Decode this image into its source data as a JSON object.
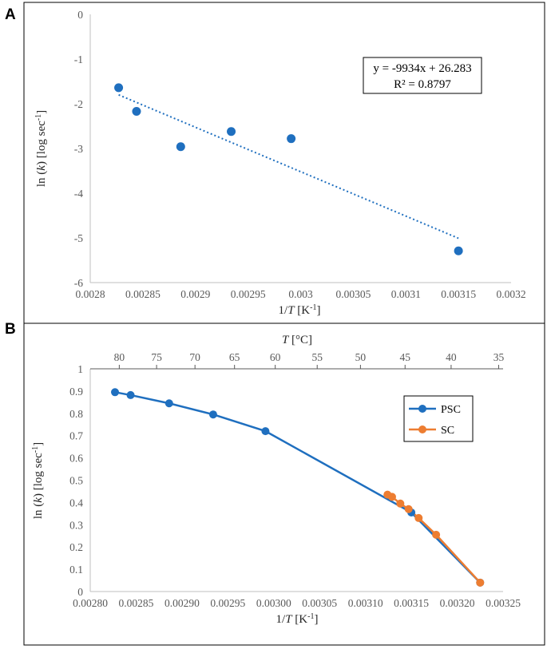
{
  "chart_data": [
    {
      "panel": "A",
      "type": "scatter",
      "xlabel": "1/T [K-1]",
      "ylabel": "ln (k) [log sec-1]",
      "xlim": [
        0.0028,
        0.0032
      ],
      "ylim": [
        -6,
        0
      ],
      "xticks": [
        "0.0028",
        "0.00285",
        "0.0029",
        "0.00295",
        "0.003",
        "0.00305",
        "0.0031",
        "0.00315",
        "0.0032"
      ],
      "yticks": [
        "0",
        "-1",
        "-2",
        "-3",
        "-4",
        "-5",
        "-6"
      ],
      "series": [
        {
          "name": "data",
          "color": "#1f6fbf",
          "x": [
            0.002827,
            0.002844,
            0.002886,
            0.002934,
            0.002991,
            0.00315
          ],
          "y": [
            -1.64,
            -2.17,
            -2.96,
            -2.62,
            -2.78,
            -5.29
          ]
        }
      ],
      "trendline": {
        "type": "linear",
        "slope": -9934,
        "intercept": 26.283,
        "x_range": [
          0.002827,
          0.00315
        ],
        "color": "#1f6fbf",
        "equation": "y = -9934x + 26.283",
        "r_squared": "R² = 0.8797"
      }
    },
    {
      "panel": "B",
      "type": "line",
      "xlabel": "1/T [K-1]",
      "ylabel": "ln (k) [log sec-1]",
      "top_xlabel": "T [°C]",
      "xlim": [
        0.0028,
        0.00325
      ],
      "ylim": [
        0,
        1
      ],
      "xticks": [
        "0.00280",
        "0.00285",
        "0.00290",
        "0.00295",
        "0.00300",
        "0.00305",
        "0.00310",
        "0.00315",
        "0.00320",
        "0.00325"
      ],
      "yticks": [
        "0",
        "0.1",
        "0.2",
        "0.3",
        "0.4",
        "0.5",
        "0.6",
        "0.7",
        "0.8",
        "0.9",
        "1"
      ],
      "top_ticks": [
        "80",
        "75",
        "70",
        "65",
        "60",
        "55",
        "50",
        "45",
        "40",
        "35"
      ],
      "series": [
        {
          "name": "PSC",
          "color": "#1f6fbf",
          "x": [
            0.002827,
            0.002844,
            0.002886,
            0.002934,
            0.002991,
            0.00315,
            0.003225
          ],
          "y": [
            0.895,
            0.882,
            0.845,
            0.795,
            0.72,
            0.355,
            0.04
          ]
        },
        {
          "name": "SC",
          "color": "#ed7d31",
          "x": [
            0.003124,
            0.003129,
            0.003138,
            0.003147,
            0.003158,
            0.003177,
            0.003225
          ],
          "y": [
            0.435,
            0.425,
            0.395,
            0.37,
            0.33,
            0.255,
            0.04
          ]
        }
      ],
      "legend": [
        "PSC",
        "SC"
      ],
      "legend_position": "right"
    }
  ],
  "panels": {
    "a_label": "A",
    "b_label": "B"
  }
}
